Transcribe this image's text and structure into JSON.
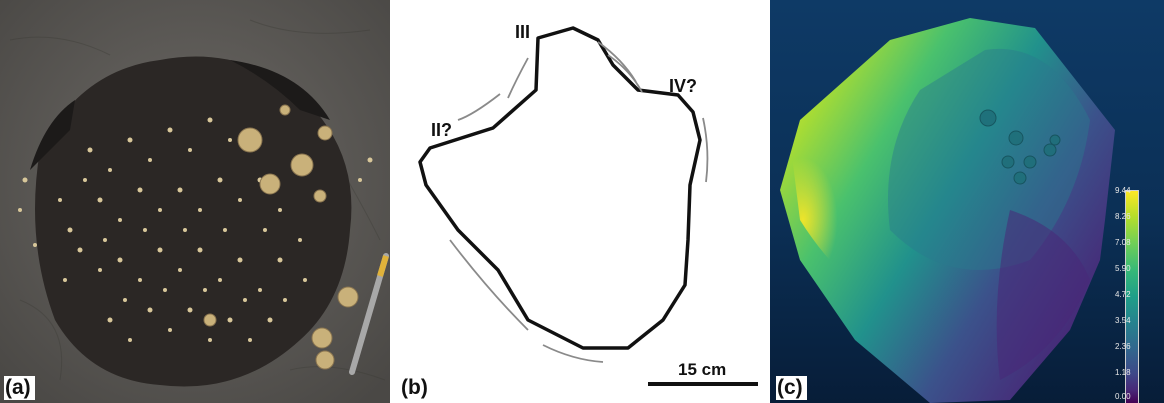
{
  "panels": {
    "a": {
      "label": "(a)"
    },
    "b": {
      "label": "(b)",
      "digit_labels": {
        "d2": "II?",
        "d3": "III",
        "d4": "IV?"
      },
      "scale": "15 cm"
    },
    "c": {
      "label": "(c)",
      "colorbar_ticks": [
        "9.44",
        "8.26",
        "7.08",
        "5.90",
        "4.72",
        "3.54",
        "2.36",
        "1.18",
        "0.00"
      ]
    }
  },
  "colors": {
    "rock": "#5c5a57",
    "track_fill": "#2a2624",
    "barnacle": "#d8c79a",
    "outline": "#111111"
  }
}
